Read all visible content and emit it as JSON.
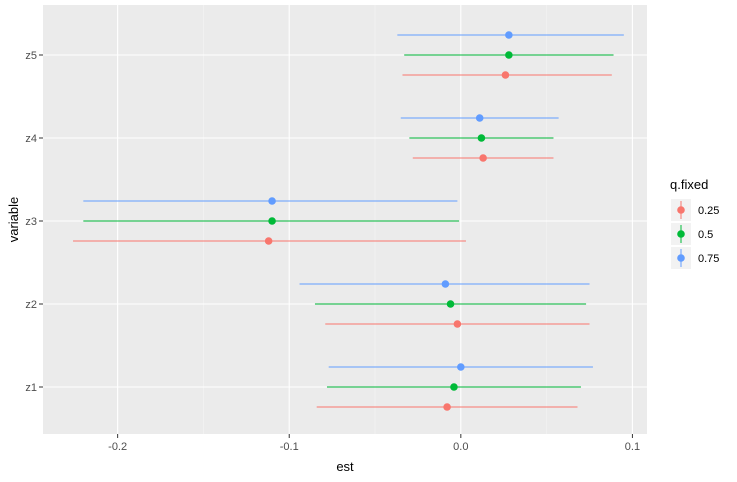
{
  "chart_data": {
    "type": "pointrange",
    "xlabel": "est",
    "ylabel": "variable",
    "xlim": [
      -0.2435,
      0.1085
    ],
    "x_ticks": [
      -0.2,
      -0.1,
      0.0,
      0.1
    ],
    "x_tick_labels": [
      "-0.2",
      "-0.1",
      "0.0",
      "0.1"
    ],
    "categories": [
      "z1",
      "z2",
      "z3",
      "z4",
      "z5"
    ],
    "legend": {
      "title": "q.fixed",
      "placement": "right",
      "entries": [
        "0.25",
        "0.5",
        "0.75"
      ]
    },
    "grid": true,
    "series": [
      {
        "name": "0.25",
        "color": "#F8766D",
        "points": [
          {
            "category": "z1",
            "est": -0.008,
            "lo": -0.084,
            "hi": 0.068
          },
          {
            "category": "z2",
            "est": -0.002,
            "lo": -0.079,
            "hi": 0.075
          },
          {
            "category": "z3",
            "est": -0.112,
            "lo": -0.226,
            "hi": 0.003
          },
          {
            "category": "z4",
            "est": 0.013,
            "lo": -0.028,
            "hi": 0.054
          },
          {
            "category": "z5",
            "est": 0.026,
            "lo": -0.034,
            "hi": 0.088
          }
        ]
      },
      {
        "name": "0.5",
        "color": "#00BA38",
        "points": [
          {
            "category": "z1",
            "est": -0.004,
            "lo": -0.078,
            "hi": 0.07
          },
          {
            "category": "z2",
            "est": -0.006,
            "lo": -0.085,
            "hi": 0.073
          },
          {
            "category": "z3",
            "est": -0.11,
            "lo": -0.22,
            "hi": -0.001
          },
          {
            "category": "z4",
            "est": 0.012,
            "lo": -0.03,
            "hi": 0.054
          },
          {
            "category": "z5",
            "est": 0.028,
            "lo": -0.033,
            "hi": 0.089
          }
        ]
      },
      {
        "name": "0.75",
        "color": "#619CFF",
        "points": [
          {
            "category": "z1",
            "est": 0.0,
            "lo": -0.077,
            "hi": 0.077
          },
          {
            "category": "z2",
            "est": -0.009,
            "lo": -0.094,
            "hi": 0.075
          },
          {
            "category": "z3",
            "est": -0.11,
            "lo": -0.22,
            "hi": -0.002
          },
          {
            "category": "z4",
            "est": 0.011,
            "lo": -0.035,
            "hi": 0.057
          },
          {
            "category": "z5",
            "est": 0.028,
            "lo": -0.037,
            "hi": 0.095
          }
        ]
      }
    ]
  }
}
